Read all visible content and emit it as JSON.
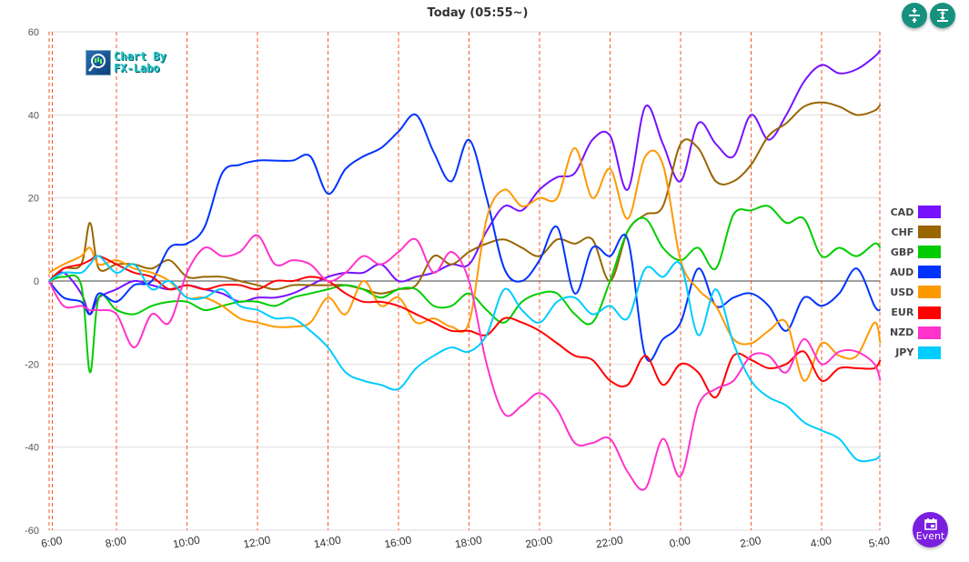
{
  "header": {
    "title": "Today  (05:55~)"
  },
  "buttons": {
    "collapse_icon": "compress-vertical-icon",
    "expand_icon": "expand-vertical-icon",
    "event_label": "Event",
    "event_icon": "calendar-icon"
  },
  "logo": {
    "line1": "Chart By",
    "line2": "FX-Labo"
  },
  "colors": {
    "accent": "#16917f",
    "event": "#7a1fe0",
    "vline": "#f05a28",
    "grid": "#dddddd",
    "zero": "#444444"
  },
  "chart_data": {
    "type": "line",
    "title": "Today  (05:55~)",
    "xlabel": "",
    "ylabel": "",
    "ylim": [
      -60,
      60
    ],
    "yticks": [
      "60",
      "40",
      "20",
      "0",
      "-20",
      "-40",
      "-60"
    ],
    "xticks": [
      "6:00",
      "8:00",
      "10:00",
      "12:00",
      "14:00",
      "16:00",
      "18:00",
      "20:00",
      "22:00",
      "0:00",
      "2:00",
      "4:00",
      "5:40"
    ],
    "grid": true,
    "legend_placement": "right",
    "x": [
      "06:05",
      "06:30",
      "07:00",
      "07:15",
      "07:30",
      "08:00",
      "08:30",
      "09:00",
      "09:30",
      "10:00",
      "10:30",
      "11:00",
      "11:30",
      "12:00",
      "12:30",
      "13:00",
      "13:30",
      "14:00",
      "14:30",
      "15:00",
      "15:30",
      "16:00",
      "16:30",
      "17:00",
      "17:30",
      "18:00",
      "18:30",
      "19:00",
      "19:30",
      "20:00",
      "20:30",
      "21:00",
      "21:30",
      "22:00",
      "22:30",
      "23:00",
      "23:30",
      "00:00",
      "00:30",
      "01:00",
      "01:30",
      "02:00",
      "02:30",
      "03:00",
      "03:30",
      "04:00",
      "04:30",
      "05:00",
      "05:30",
      "05:40"
    ],
    "series": [
      {
        "name": "CAD",
        "color": "#7711ff",
        "values": [
          0,
          2,
          -3,
          -8,
          -4,
          -2,
          0,
          -1,
          -2,
          -1,
          -2,
          -3,
          -5,
          -4,
          -4,
          -3,
          -1,
          1,
          2,
          2,
          4,
          0,
          1,
          2,
          4,
          4,
          12,
          18,
          17,
          22,
          25,
          26,
          34,
          35,
          22,
          42,
          33,
          24,
          38,
          33,
          30,
          40,
          34,
          40,
          48,
          52,
          50,
          51,
          54,
          55.6
        ]
      },
      {
        "name": "CHF",
        "color": "#996600",
        "values": [
          0,
          3,
          4,
          14,
          3,
          4,
          4,
          3,
          5,
          1,
          1,
          1,
          0,
          -1,
          -2,
          -1,
          -1,
          -1,
          -1,
          -2,
          -3,
          -2,
          -1,
          6,
          4,
          7,
          9,
          10,
          8,
          6,
          10,
          9,
          10,
          0,
          12,
          16,
          18,
          33,
          32,
          24,
          24,
          28,
          35,
          38,
          42,
          43,
          42,
          40,
          41,
          42.5
        ]
      },
      {
        "name": "GBP",
        "color": "#00cc00",
        "values": [
          0,
          1,
          -1,
          -22,
          -4,
          -7,
          -8,
          -6,
          -5,
          -5,
          -7,
          -6,
          -5,
          -5,
          -6,
          -4,
          -3,
          -2,
          -1,
          -2,
          -4,
          -2,
          -2,
          -6,
          -6,
          -3,
          -7,
          -10,
          -5,
          -3,
          -3,
          -8,
          -10,
          0,
          12,
          15,
          8,
          5,
          8,
          3,
          16,
          17,
          18,
          14,
          15,
          6,
          8,
          6,
          9,
          8
        ]
      },
      {
        "name": "AUD",
        "color": "#0033ff",
        "values": [
          0,
          -4,
          -5,
          -8,
          -3,
          -5,
          -1,
          0,
          8,
          9,
          13,
          26,
          28,
          29,
          29,
          29,
          30,
          21,
          27,
          30,
          32,
          36,
          40,
          31,
          24,
          34,
          20,
          3,
          0,
          5,
          13,
          -3,
          8,
          6,
          10,
          -18,
          -14,
          -10,
          3,
          -6,
          -4,
          -3,
          -6,
          -12,
          -4,
          -6,
          -3,
          3,
          -6,
          -7
        ]
      },
      {
        "name": "USD",
        "color": "#ff9900",
        "values": [
          2,
          4,
          6,
          8,
          4,
          5,
          3,
          2,
          0,
          -4,
          -4,
          -6,
          -9,
          -10,
          -11,
          -11,
          -10,
          -4,
          -8,
          0,
          -6,
          -4,
          -10,
          -9,
          -11,
          -10,
          15,
          22,
          18,
          20,
          20,
          32,
          20,
          27,
          15,
          30,
          28,
          5,
          -2,
          -6,
          -14,
          -15,
          -12,
          -10,
          -24,
          -15,
          -18,
          -18,
          -10,
          -15
        ]
      },
      {
        "name": "EUR",
        "color": "#ff0000",
        "values": [
          0,
          3,
          4,
          5,
          6,
          4,
          2,
          1,
          -2,
          -1,
          -2,
          -1,
          -1,
          -2,
          0,
          0,
          1,
          0,
          -3,
          -5,
          -5,
          -6,
          -8,
          -10,
          -12,
          -12,
          -13,
          -9,
          -10,
          -12,
          -15,
          -18,
          -19,
          -24,
          -25,
          -18,
          -25,
          -20,
          -22,
          -28,
          -18,
          -19,
          -21,
          -20,
          -17,
          -24,
          -21,
          -21,
          -21,
          -19
        ]
      },
      {
        "name": "NZD",
        "color": "#ff33cc",
        "values": [
          0,
          -6,
          -6,
          -7,
          -7,
          -8,
          -16,
          -8,
          -10,
          2,
          8,
          6,
          7,
          11,
          4,
          5,
          4,
          0,
          2,
          6,
          4,
          7,
          10,
          2,
          7,
          0,
          -20,
          -32,
          -30,
          -27,
          -31,
          -39,
          -39,
          -38,
          -46,
          -50,
          -38,
          -47,
          -30,
          -26,
          -24,
          -18,
          -18,
          -22,
          -14,
          -20,
          -17,
          -17,
          -20,
          -24
        ]
      },
      {
        "name": "JPY",
        "color": "#00ccff",
        "values": [
          0,
          2,
          2,
          4,
          6,
          2,
          4,
          -2,
          0,
          -4,
          -4,
          -2,
          -6,
          -7,
          -9,
          -9,
          -12,
          -16,
          -22,
          -24,
          -25,
          -26,
          -21,
          -18,
          -16,
          -17,
          -13,
          -2,
          -7,
          -10,
          -5,
          -4,
          -8,
          -6,
          -9,
          3,
          1,
          4,
          -13,
          -2,
          -15,
          -24,
          -28,
          -30,
          -34,
          -36,
          -38,
          -43,
          -43,
          -42
        ]
      }
    ]
  }
}
